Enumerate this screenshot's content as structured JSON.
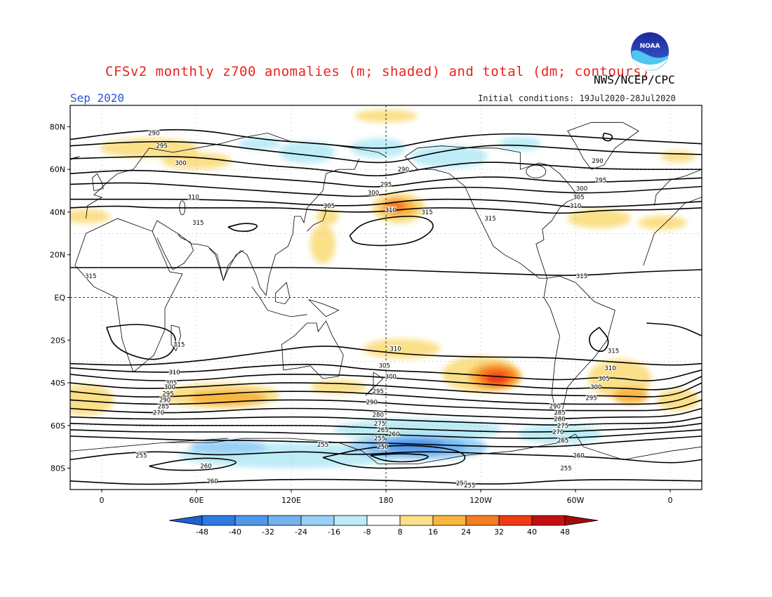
{
  "header": {
    "title": "CFSv2 monthly z700 anomalies (m; shaded) and total (dm; contours)",
    "agency": "NWS/NCEP/CPC",
    "month": "Sep 2020",
    "initial_conditions": "Initial conditions: 19Jul2020-28Jul2020",
    "logo_icon": "noaa-logo-icon",
    "logo_text": "NOAA"
  },
  "map": {
    "lat_ticks": [
      "80N",
      "60N",
      "40N",
      "20N",
      "EQ",
      "20S",
      "40S",
      "60S",
      "80S"
    ],
    "lon_ticks": [
      "0",
      "60E",
      "120E",
      "180",
      "120W",
      "60W",
      "0"
    ],
    "colors": {
      "title": "#e8231c",
      "month": "#2a52d8"
    }
  },
  "chart_data": {
    "type": "heatmap",
    "variable": "700 hPa geopotential height",
    "shading_units": "m",
    "contour_units": "dm",
    "lat_range": [
      -90,
      90
    ],
    "lon_range": [
      -20,
      380
    ],
    "contour_levels": [
      250,
      255,
      260,
      265,
      270,
      275,
      280,
      285,
      290,
      295,
      300,
      305,
      310,
      315
    ],
    "colorbar": {
      "ticks": [
        "-48",
        "-40",
        "-32",
        "-24",
        "-16",
        "-8",
        "8",
        "16",
        "24",
        "32",
        "40",
        "48"
      ],
      "colors": [
        "#1e5fd2",
        "#2f7ae0",
        "#4f98ea",
        "#73b4f0",
        "#98d0f6",
        "#bdecf6",
        "#ffffff",
        "#fbe08a",
        "#f9b640",
        "#f57d21",
        "#ef3a14",
        "#c21010",
        "#a00c0c"
      ]
    },
    "anomalies": [
      {
        "region": "North Pacific (~40N, 170W)",
        "lon": 188,
        "lat": 42,
        "value": 32
      },
      {
        "region": "South Pacific (~35S, 110W)",
        "lon": 250,
        "lat": -37,
        "value": 40
      },
      {
        "region": "Antarctic Pacific sector (~70S, 160W)",
        "lon": 198,
        "lat": -68,
        "value": -32
      },
      {
        "region": "Southern Indian Ocean (~45S, 80E)",
        "lon": 80,
        "lat": -46,
        "value": 16
      },
      {
        "region": "North Atlantic (~40N, 40W)",
        "lon": 320,
        "lat": 37,
        "value": 8
      },
      {
        "region": "South Atlantic (~40S, 30W)",
        "lon": 330,
        "lat": -38,
        "value": 16
      }
    ],
    "contour_labels": [
      {
        "text": "290",
        "lon": 33,
        "lat": 77
      },
      {
        "text": "295",
        "lon": 38,
        "lat": 71
      },
      {
        "text": "300",
        "lon": 50,
        "lat": 63
      },
      {
        "text": "310",
        "lon": 58,
        "lat": 47
      },
      {
        "text": "315",
        "lon": 61,
        "lat": 35
      },
      {
        "text": "305",
        "lon": 144,
        "lat": 43
      },
      {
        "text": "300",
        "lon": 172,
        "lat": 49
      },
      {
        "text": "295",
        "lon": 180,
        "lat": 53
      },
      {
        "text": "290",
        "lon": 191,
        "lat": 60
      },
      {
        "text": "310",
        "lon": 183,
        "lat": 41
      },
      {
        "text": "315",
        "lon": 206,
        "lat": 40
      },
      {
        "text": "315",
        "lon": 246,
        "lat": 37
      },
      {
        "text": "290",
        "lon": 314,
        "lat": 64
      },
      {
        "text": "295",
        "lon": 316,
        "lat": 55
      },
      {
        "text": "300",
        "lon": 304,
        "lat": 51
      },
      {
        "text": "305",
        "lon": 302,
        "lat": 47
      },
      {
        "text": "310",
        "lon": 300,
        "lat": 43
      },
      {
        "text": "315",
        "lon": 304,
        "lat": 10
      },
      {
        "text": "315",
        "lon": -7,
        "lat": 10
      },
      {
        "text": "315",
        "lon": 49,
        "lat": -22
      },
      {
        "text": "310",
        "lon": 186,
        "lat": -24
      },
      {
        "text": "305",
        "lon": 179,
        "lat": -32
      },
      {
        "text": "300",
        "lon": 183,
        "lat": -37
      },
      {
        "text": "295",
        "lon": 175,
        "lat": -44
      },
      {
        "text": "290",
        "lon": 171,
        "lat": -49
      },
      {
        "text": "280",
        "lon": 175,
        "lat": -55
      },
      {
        "text": "275",
        "lon": 176,
        "lat": -59
      },
      {
        "text": "265",
        "lon": 178,
        "lat": -62
      },
      {
        "text": "260",
        "lon": 185,
        "lat": -64
      },
      {
        "text": "255",
        "lon": 176,
        "lat": -66
      },
      {
        "text": "250",
        "lon": 178,
        "lat": -70
      },
      {
        "text": "255",
        "lon": 140,
        "lat": -69
      },
      {
        "text": "255",
        "lon": 25,
        "lat": -74
      },
      {
        "text": "260",
        "lon": 66,
        "lat": -79
      },
      {
        "text": "260",
        "lon": 70,
        "lat": -86
      },
      {
        "text": "250",
        "lon": 228,
        "lat": -87
      },
      {
        "text": "255",
        "lon": 233,
        "lat": -88
      },
      {
        "text": "310",
        "lon": 46,
        "lat": -35
      },
      {
        "text": "305",
        "lon": 44,
        "lat": -40
      },
      {
        "text": "300",
        "lon": 43,
        "lat": -42
      },
      {
        "text": "295",
        "lon": 42,
        "lat": -45
      },
      {
        "text": "290",
        "lon": 40,
        "lat": -48
      },
      {
        "text": "285",
        "lon": 39,
        "lat": -51
      },
      {
        "text": "270",
        "lon": 36,
        "lat": -54
      },
      {
        "text": "315",
        "lon": 324,
        "lat": -25
      },
      {
        "text": "310",
        "lon": 322,
        "lat": -33
      },
      {
        "text": "305",
        "lon": 318,
        "lat": -38
      },
      {
        "text": "300",
        "lon": 313,
        "lat": -42
      },
      {
        "text": "295",
        "lon": 310,
        "lat": -47
      },
      {
        "text": "290",
        "lon": 287,
        "lat": -51
      },
      {
        "text": "285",
        "lon": 290,
        "lat": -54
      },
      {
        "text": "280",
        "lon": 290,
        "lat": -57
      },
      {
        "text": "275",
        "lon": 292,
        "lat": -60
      },
      {
        "text": "270",
        "lon": 289,
        "lat": -63
      },
      {
        "text": "265",
        "lon": 292,
        "lat": -67
      },
      {
        "text": "260",
        "lon": 302,
        "lat": -74
      },
      {
        "text": "255",
        "lon": 294,
        "lat": -80
      }
    ]
  }
}
